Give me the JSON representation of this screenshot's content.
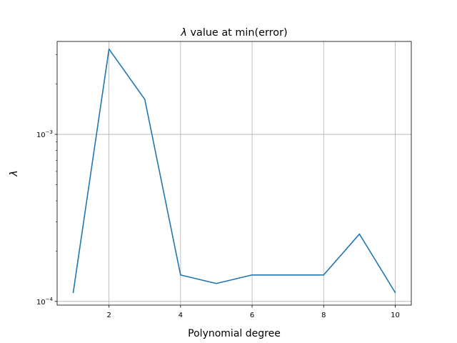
{
  "chart_data": {
    "type": "line",
    "title_symbol": "λ",
    "title_rest": " value at min(error)",
    "xlabel": "Polynomial degree",
    "ylabel": "λ",
    "yscale": "log",
    "grid": true,
    "xlim": [
      0.55,
      10.45
    ],
    "ylim": [
      9.5e-05,
      0.0036
    ],
    "xticks": [
      2,
      4,
      6,
      8,
      10
    ],
    "xtick_labels": [
      "2",
      "4",
      "6",
      "8",
      "10"
    ],
    "yticks": [
      0.0001,
      0.001
    ],
    "ytick_labels": [
      {
        "base": "10",
        "exp": "−4"
      },
      {
        "base": "10",
        "exp": "−3"
      }
    ],
    "line_color": "#1f77b4",
    "series": [
      {
        "x": [
          1,
          2,
          3,
          4,
          5,
          6,
          7,
          8,
          9,
          10
        ],
        "y": [
          0.000113,
          0.00324,
          0.00162,
          0.000144,
          0.000128,
          0.000144,
          0.000144,
          0.000144,
          0.000253,
          0.000113
        ]
      }
    ]
  }
}
